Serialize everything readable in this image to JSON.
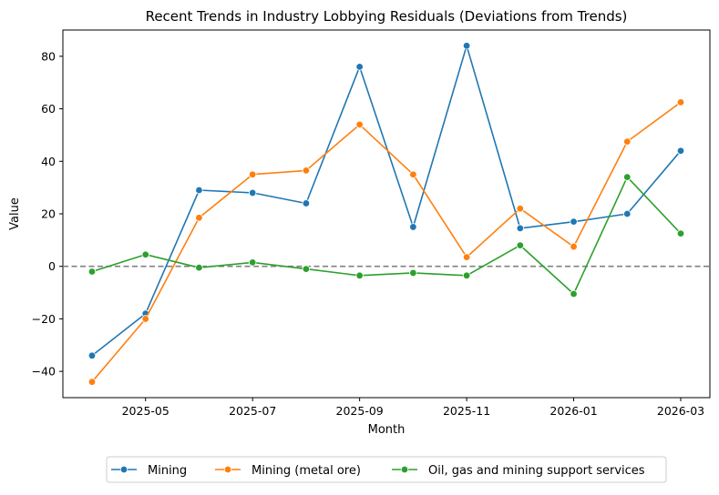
{
  "chart_data": {
    "type": "line",
    "title": "Recent Trends in Industry Lobbying Residuals (Deviations from Trends)",
    "xlabel": "Month",
    "ylabel": "Value",
    "x": [
      "2025-04",
      "2025-05",
      "2025-06",
      "2025-07",
      "2025-08",
      "2025-09",
      "2025-10",
      "2025-11",
      "2025-12",
      "2026-01",
      "2026-02",
      "2026-03"
    ],
    "x_ticks": [
      "2025-05",
      "2025-07",
      "2025-09",
      "2025-11",
      "2026-01",
      "2026-03"
    ],
    "y_ticks": [
      -40,
      -20,
      0,
      20,
      40,
      60,
      80
    ],
    "ylim": [
      -50,
      90
    ],
    "reference_line": 0,
    "grid": false,
    "legend_position": "bottom",
    "series": [
      {
        "name": "Mining",
        "color": "#1f77b4",
        "values": [
          -34,
          -18,
          29,
          28,
          24,
          76,
          15,
          84,
          14.5,
          17,
          20,
          44
        ]
      },
      {
        "name": "Mining (metal ore)",
        "color": "#ff7f0e",
        "values": [
          -44,
          -20,
          18.5,
          35,
          36.5,
          54,
          35,
          3.5,
          22,
          7.5,
          47.5,
          62.5
        ]
      },
      {
        "name": "Oil, gas and mining support services",
        "color": "#2ca02c",
        "values": [
          -2,
          4.5,
          -0.5,
          1.5,
          -1,
          -3.5,
          -2.5,
          -3.5,
          8,
          -10.5,
          34,
          12.5
        ]
      }
    ]
  }
}
